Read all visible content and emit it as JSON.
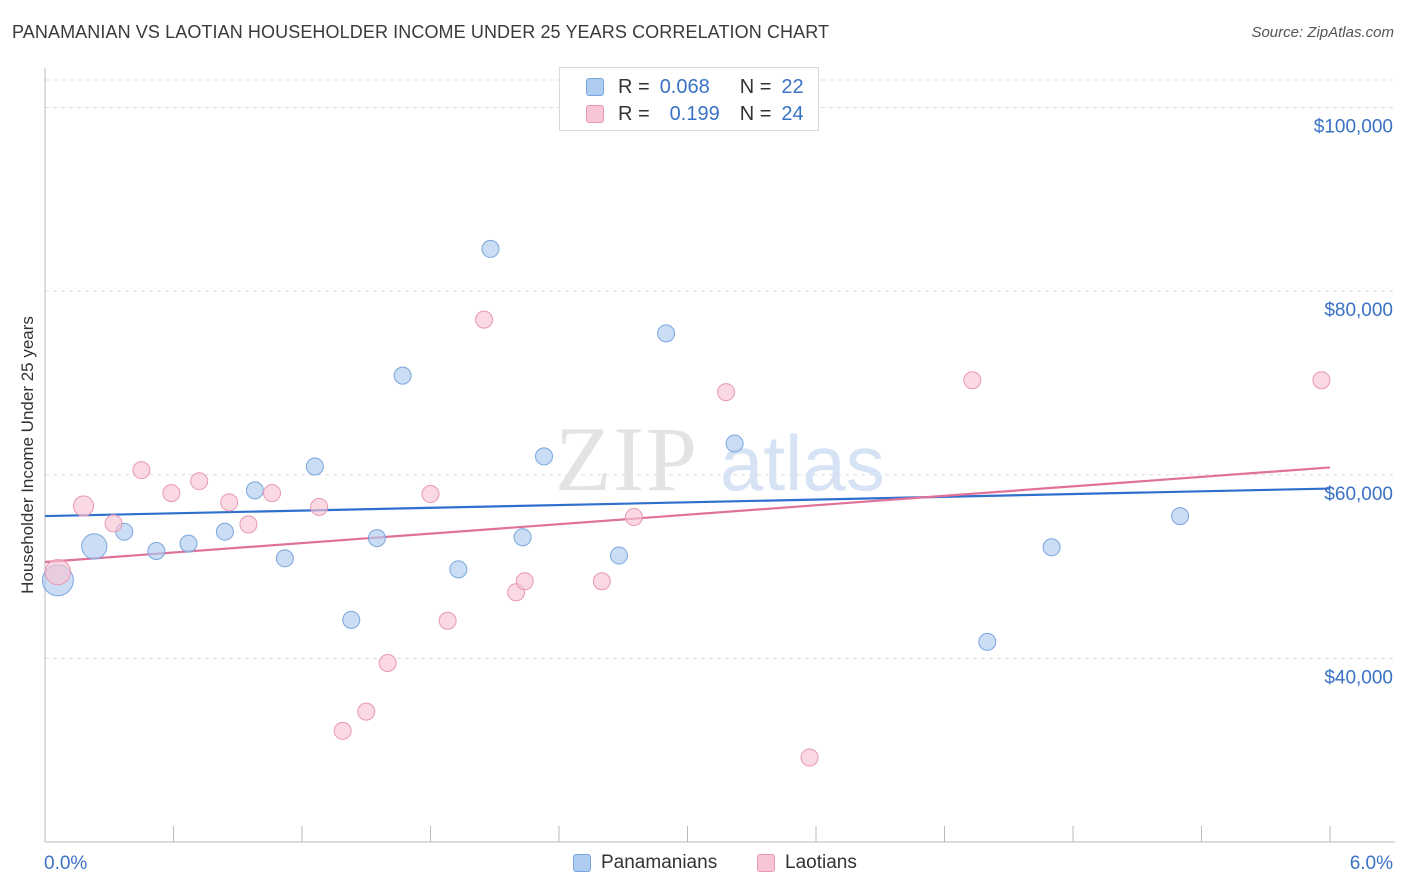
{
  "header": {
    "title": "PANAMANIAN VS LAOTIAN HOUSEHOLDER INCOME UNDER 25 YEARS CORRELATION CHART",
    "source": "Source: ZipAtlas.com"
  },
  "watermark": {
    "zip": "ZIP",
    "atlas": "atlas"
  },
  "legend": {
    "rows": [
      {
        "r_label": "R =",
        "r_value": "0.068",
        "n_label": "N =",
        "n_value": "22",
        "color": "#aecbf0",
        "border": "#7aa6dd"
      },
      {
        "r_label": "R =",
        "r_value": "0.199",
        "n_label": "N =",
        "n_value": "24",
        "color": "#f7c5d4",
        "border": "#e998b1"
      }
    ]
  },
  "chart_data": {
    "type": "scatter",
    "title": "PANAMANIAN VS LAOTIAN HOUSEHOLDER INCOME UNDER 25 YEARS CORRELATION CHART",
    "xlabel": "",
    "ylabel": "Householder Income Under 25 years",
    "xlim": [
      0,
      6
    ],
    "ylim": [
      20000,
      103000
    ],
    "x_tick_labels": [
      "0.0%",
      "6.0%"
    ],
    "y_ticks": [
      40000,
      60000,
      80000,
      100000
    ],
    "y_tick_labels": [
      "$40,000",
      "$60,000",
      "$80,000",
      "$100,000"
    ],
    "grid": "horizontal dashed",
    "legend_position": "bottom",
    "series": [
      {
        "name": "Panamanians",
        "color": "#aecbf0",
        "stroke": "#7aa6dd",
        "line_color": "#2f6fce",
        "trend": {
          "x": [
            0,
            6
          ],
          "y": [
            55500,
            58500
          ]
        },
        "points": [
          {
            "x": 0.06,
            "y": 48500,
            "s": 3
          },
          {
            "x": 0.23,
            "y": 52200,
            "s": 2
          },
          {
            "x": 0.37,
            "y": 53800,
            "s": 1
          },
          {
            "x": 0.52,
            "y": 51700,
            "s": 1
          },
          {
            "x": 0.67,
            "y": 52500,
            "s": 1
          },
          {
            "x": 0.84,
            "y": 53800,
            "s": 1
          },
          {
            "x": 0.98,
            "y": 58300,
            "s": 1
          },
          {
            "x": 1.12,
            "y": 50900,
            "s": 1
          },
          {
            "x": 1.26,
            "y": 60900,
            "s": 1
          },
          {
            "x": 1.43,
            "y": 44200,
            "s": 1
          },
          {
            "x": 1.55,
            "y": 53100,
            "s": 1
          },
          {
            "x": 1.67,
            "y": 70800,
            "s": 1
          },
          {
            "x": 1.93,
            "y": 49700,
            "s": 1
          },
          {
            "x": 2.08,
            "y": 84600,
            "s": 1
          },
          {
            "x": 2.23,
            "y": 53200,
            "s": 1
          },
          {
            "x": 2.33,
            "y": 62000,
            "s": 1
          },
          {
            "x": 2.68,
            "y": 51200,
            "s": 1
          },
          {
            "x": 2.9,
            "y": 75400,
            "s": 1
          },
          {
            "x": 3.22,
            "y": 63400,
            "s": 1
          },
          {
            "x": 4.4,
            "y": 41800,
            "s": 1
          },
          {
            "x": 4.7,
            "y": 52100,
            "s": 1
          },
          {
            "x": 5.3,
            "y": 55500,
            "s": 1
          }
        ]
      },
      {
        "name": "Laotians",
        "color": "#f7c5d4",
        "stroke": "#e998b1",
        "line_color": "#e0729a",
        "trend": {
          "x": [
            0,
            6
          ],
          "y": [
            50500,
            60800
          ]
        },
        "points": [
          {
            "x": 0.06,
            "y": 49400,
            "s": 2
          },
          {
            "x": 0.18,
            "y": 56600,
            "s": 1.4
          },
          {
            "x": 0.32,
            "y": 54700,
            "s": 1
          },
          {
            "x": 0.45,
            "y": 60500,
            "s": 1
          },
          {
            "x": 0.59,
            "y": 58000,
            "s": 1
          },
          {
            "x": 0.72,
            "y": 59300,
            "s": 1
          },
          {
            "x": 0.86,
            "y": 57000,
            "s": 1
          },
          {
            "x": 0.95,
            "y": 54600,
            "s": 1
          },
          {
            "x": 1.06,
            "y": 58000,
            "s": 1
          },
          {
            "x": 1.28,
            "y": 56500,
            "s": 1
          },
          {
            "x": 1.39,
            "y": 32100,
            "s": 1
          },
          {
            "x": 1.5,
            "y": 34200,
            "s": 1
          },
          {
            "x": 1.6,
            "y": 39500,
            "s": 1
          },
          {
            "x": 1.8,
            "y": 57900,
            "s": 1
          },
          {
            "x": 1.88,
            "y": 44100,
            "s": 1
          },
          {
            "x": 2.05,
            "y": 76900,
            "s": 1
          },
          {
            "x": 2.2,
            "y": 47200,
            "s": 1
          },
          {
            "x": 2.24,
            "y": 48400,
            "s": 1
          },
          {
            "x": 2.6,
            "y": 48400,
            "s": 1
          },
          {
            "x": 2.75,
            "y": 55400,
            "s": 1
          },
          {
            "x": 3.18,
            "y": 69000,
            "s": 1
          },
          {
            "x": 3.57,
            "y": 29200,
            "s": 1
          },
          {
            "x": 4.33,
            "y": 70300,
            "s": 1
          },
          {
            "x": 5.96,
            "y": 70300,
            "s": 1
          }
        ]
      }
    ]
  }
}
